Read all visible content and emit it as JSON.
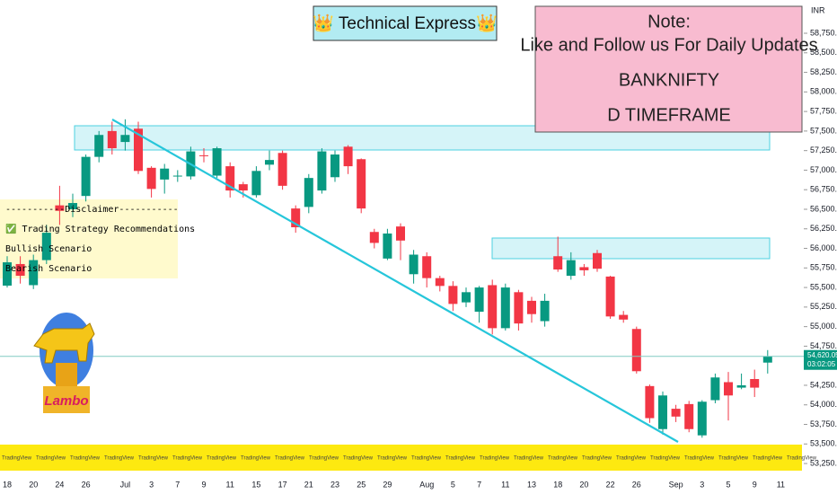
{
  "chart_data": {
    "type": "candlestick",
    "title": "👑 Technical Express👑",
    "note": {
      "heading": "Note:",
      "lines": [
        "Like and Follow us For Daily Updates",
        "BANKNIFTY",
        "D TIMEFRAME"
      ]
    },
    "disclaimer": [
      "-----------Disclaimer-----------",
      "✅ Trading Strategy Recommendations",
      "Bullish Scenario",
      "Bearish Scenario"
    ],
    "logo_text": "Lambo",
    "banner_text": "TradingView",
    "currency": "INR",
    "categories": [
      "18",
      null,
      "20",
      null,
      "24",
      null,
      "26",
      null,
      null,
      "Jul",
      null,
      "3",
      null,
      "7",
      null,
      "9",
      null,
      "11",
      null,
      "15",
      null,
      "17",
      null,
      "21",
      null,
      "23",
      null,
      "25",
      null,
      "29",
      null,
      null,
      "Aug",
      null,
      "5",
      null,
      "7",
      null,
      "11",
      null,
      "13",
      null,
      "18",
      null,
      "20",
      null,
      "22",
      null,
      "26",
      null,
      null,
      "Sep",
      null,
      "3",
      null,
      "5",
      null,
      "9",
      null,
      "11"
    ],
    "open": [
      55524,
      55800,
      55530,
      55850,
      56550,
      56500,
      56670,
      57170,
      57500,
      57360,
      57530,
      57030,
      56880,
      56920,
      56920,
      57190,
      56930,
      57050,
      56820,
      56680,
      57070,
      57220,
      56510,
      56530,
      56740,
      56910,
      57300,
      57140,
      56210,
      55870,
      56280,
      55670,
      55900,
      55620,
      55520,
      55310,
      55190,
      55530,
      54980,
      55440,
      55330,
      55070,
      55900,
      55650,
      55760,
      55940,
      55640,
      55150,
      54970,
      54240,
      53690,
      53950,
      54010,
      53610,
      54060,
      54290,
      54220,
      54330,
      54540,
      null
    ],
    "high": [
      55900,
      55900,
      55920,
      56300,
      56800,
      56700,
      57200,
      57500,
      57620,
      57650,
      57620,
      57050,
      57080,
      57000,
      57300,
      57280,
      57300,
      57100,
      56850,
      57050,
      57250,
      57250,
      56550,
      56950,
      57280,
      57250,
      57320,
      57150,
      56250,
      56250,
      56320,
      55980,
      55950,
      55650,
      55580,
      55500,
      55520,
      55600,
      55550,
      55470,
      55380,
      55420,
      56150,
      55950,
      55800,
      55980,
      55650,
      55200,
      55000,
      54260,
      54170,
      54000,
      54050,
      54060,
      54400,
      54420,
      54400,
      54450,
      54700,
      null
    ],
    "low": [
      55500,
      55550,
      55480,
      55800,
      56300,
      56400,
      56600,
      57100,
      57200,
      57250,
      56950,
      56650,
      56700,
      56850,
      56880,
      57100,
      56900,
      56650,
      56650,
      56650,
      57000,
      56750,
      56200,
      56450,
      56700,
      56850,
      56950,
      56450,
      56000,
      55850,
      55850,
      55550,
      55500,
      55450,
      55200,
      55250,
      55050,
      54900,
      54950,
      54950,
      55050,
      55000,
      55700,
      55600,
      55650,
      55700,
      55100,
      55050,
      54400,
      53770,
      53620,
      53780,
      53650,
      53580,
      54020,
      53800,
      54200,
      54100,
      54400,
      null
    ],
    "close": [
      55822,
      55650,
      55850,
      56200,
      56480,
      56580,
      57170,
      57450,
      57280,
      57450,
      56990,
      56760,
      57020,
      56930,
      57240,
      57180,
      57280,
      56740,
      56740,
      56990,
      57130,
      56800,
      56270,
      56900,
      57240,
      57200,
      57050,
      56510,
      56070,
      56190,
      56100,
      55920,
      55620,
      55520,
      55290,
      55440,
      55500,
      54980,
      55500,
      55040,
      55160,
      55330,
      55730,
      55850,
      55720,
      55740,
      55130,
      55090,
      54430,
      53830,
      54120,
      53850,
      53690,
      54040,
      54350,
      54120,
      54250,
      54220,
      54620.05,
      null
    ],
    "up_color": "#089981",
    "down_color": "#f23645",
    "last_price": {
      "value": 54620.05,
      "label": "54,620.05"
    },
    "countdown": "03:02:05",
    "ylim": [
      53090,
      59175
    ],
    "yticks": [
      {
        "value": 53250,
        "label": "53,250.00"
      },
      {
        "value": 53500,
        "label": "53,500.00"
      },
      {
        "value": 53750,
        "label": "53,750.00"
      },
      {
        "value": 54000,
        "label": "54,000.00"
      },
      {
        "value": 54250,
        "label": "54,250.00"
      },
      {
        "value": 54500,
        "label": "54,500.00"
      },
      {
        "value": 54750,
        "label": "54,750.00"
      },
      {
        "value": 55000,
        "label": "55,000.00"
      },
      {
        "value": 55250,
        "label": "55,250.00"
      },
      {
        "value": 55500,
        "label": "55,500.00"
      },
      {
        "value": 55750,
        "label": "55,750.00"
      },
      {
        "value": 56000,
        "label": "56,000.00"
      },
      {
        "value": 56250,
        "label": "56,250.00"
      },
      {
        "value": 56500,
        "label": "56,500.00"
      },
      {
        "value": 56750,
        "label": "56,750.00"
      },
      {
        "value": 57000,
        "label": "57,000.00"
      },
      {
        "value": 57250,
        "label": "57,250.00"
      },
      {
        "value": 57500,
        "label": "57,500.00"
      },
      {
        "value": 57750,
        "label": "57,750.00"
      },
      {
        "value": 58000,
        "label": "58,000.00"
      },
      {
        "value": 58250,
        "label": "58,250.00"
      },
      {
        "value": 58500,
        "label": "58,500.00"
      },
      {
        "value": 58750,
        "label": "58,750.00"
      }
    ]
  }
}
